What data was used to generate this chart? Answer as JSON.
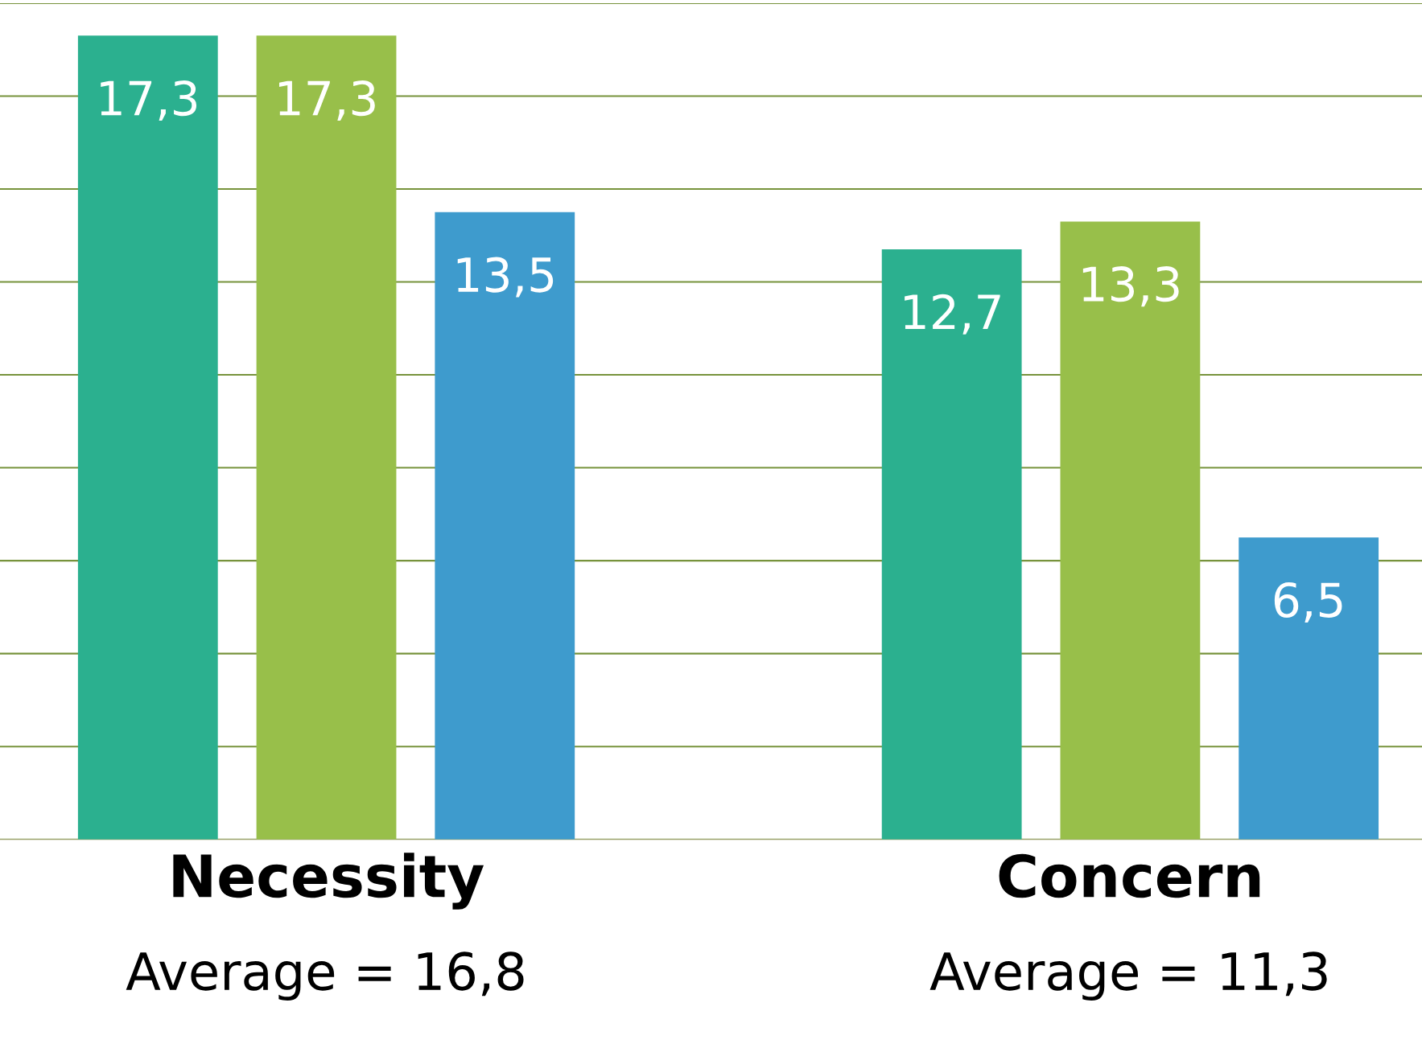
{
  "chart_data": {
    "type": "bar",
    "categories": [
      "Necessity",
      "Concern"
    ],
    "series": [
      {
        "color": "#2bb08f",
        "values": [
          17.3,
          12.7
        ],
        "value_labels": [
          "17,3",
          "12,7"
        ]
      },
      {
        "color": "#98bf4a",
        "values": [
          17.3,
          13.3
        ],
        "value_labels": [
          "17,3",
          "13,3"
        ]
      },
      {
        "color": "#3e9bcd",
        "values": [
          13.5,
          6.5
        ],
        "value_labels": [
          "13,5",
          "6,5"
        ]
      }
    ],
    "annotations": [
      "Average = 16,8",
      "Average = 11,3"
    ],
    "ylim": [
      0,
      18
    ],
    "yticks": [
      {
        "value": 0,
        "label": null
      },
      {
        "value": 2,
        "label": null
      },
      {
        "value": 4,
        "label": null
      },
      {
        "value": 6,
        "label": null
      },
      {
        "value": 8,
        "label": null
      },
      {
        "value": 10,
        "label": null
      },
      {
        "value": 12,
        "label": null
      },
      {
        "value": 14,
        "label": null
      },
      {
        "value": 16,
        "label": null
      },
      {
        "value": 18,
        "label": null
      }
    ],
    "grid": "y",
    "tick_labels": "x",
    "legend": false
  }
}
